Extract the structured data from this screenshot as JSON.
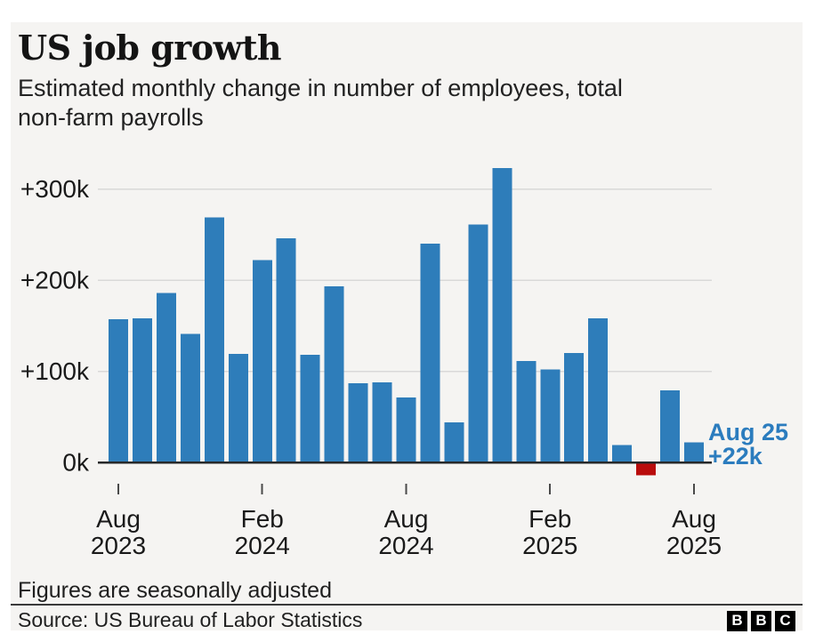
{
  "header": {
    "title": "US job growth",
    "subtitle_line1": "Estimated monthly change in number of employees, total",
    "subtitle_line2": "non-farm payrolls"
  },
  "chart_data": {
    "type": "bar",
    "title": "US job growth",
    "subtitle": "Estimated monthly change in number of employees, total non-farm payrolls",
    "unit": "thousands of employees (k)",
    "categories": [
      "Aug 2023",
      "Sep 2023",
      "Oct 2023",
      "Nov 2023",
      "Dec 2023",
      "Jan 2024",
      "Feb 2024",
      "Mar 2024",
      "Apr 2024",
      "May 2024",
      "Jun 2024",
      "Jul 2024",
      "Aug 2024",
      "Sep 2024",
      "Oct 2024",
      "Nov 2024",
      "Dec 2024",
      "Jan 2025",
      "Feb 2025",
      "Mar 2025",
      "Apr 2025",
      "May 2025",
      "Jun 2025",
      "Jul 2025",
      "Aug 2025"
    ],
    "values": [
      157,
      158,
      186,
      141,
      269,
      119,
      222,
      246,
      118,
      193,
      87,
      88,
      71,
      240,
      44,
      261,
      323,
      111,
      102,
      120,
      158,
      19,
      -13,
      79,
      22
    ],
    "ylim": [
      -20,
      340
    ],
    "grid": true,
    "legend": false,
    "y_ticks": [
      {
        "label": "+300k",
        "value": 300
      },
      {
        "label": "+200k",
        "value": 200
      },
      {
        "label": "+100k",
        "value": 100
      },
      {
        "label": "0k",
        "value": 0
      }
    ],
    "x_ticks": [
      {
        "index": 0,
        "line1": "Aug",
        "line2": "2023"
      },
      {
        "index": 6,
        "line1": "Feb",
        "line2": "2024"
      },
      {
        "index": 12,
        "line1": "Aug",
        "line2": "2024"
      },
      {
        "index": 18,
        "line1": "Feb",
        "line2": "2025"
      },
      {
        "index": 24,
        "line1": "Aug",
        "line2": "2025"
      }
    ],
    "annotation": {
      "line1": "Aug 25",
      "line2": "+22k",
      "target_index": 24
    },
    "colors": {
      "bar": "#2e7dba",
      "negative_bar": "#b90c0c",
      "annotation_text": "#2b7cbe",
      "gridline": "#d9d9d8",
      "axis_line": "#26282a",
      "tick_mark": "#4a4a4a",
      "label_text": "#1a1a1a"
    }
  },
  "footer": {
    "footnote": "Figures are seasonally adjusted",
    "source": "Source: US Bureau of Labor Statistics",
    "logo_letters": [
      "B",
      "B",
      "C"
    ]
  }
}
